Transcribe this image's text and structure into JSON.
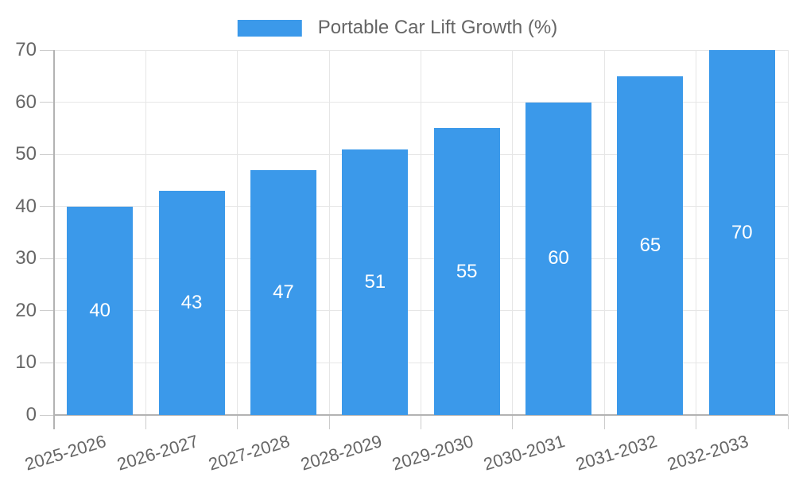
{
  "legend": {
    "label": "Portable Car Lift Growth (%)"
  },
  "colors": {
    "bar": "#3B99EA",
    "text": "#666666",
    "bar_value_text": "#ffffff",
    "gridline": "#e6e6e6",
    "tickmark": "#cccccc",
    "axis_line": "#b3b3b3",
    "background": "#ffffff"
  },
  "chart_data": {
    "type": "bar",
    "title": "Portable Car Lift Growth (%)",
    "series_name": "Portable Car Lift Growth (%)",
    "categories": [
      "2025-2026",
      "2026-2027",
      "2027-2028",
      "2028-2029",
      "2029-2030",
      "2030-2031",
      "2031-2032",
      "2032-2033"
    ],
    "values": [
      40,
      43,
      47,
      51,
      55,
      60,
      65,
      70
    ],
    "value_labels": [
      "40",
      "43",
      "47",
      "51",
      "55",
      "60",
      "65",
      "70"
    ],
    "xlabel": "",
    "ylabel": "",
    "ylim": [
      0,
      70
    ],
    "y_ticks": [
      0,
      10,
      20,
      30,
      40,
      50,
      60,
      70
    ],
    "grid": true,
    "legend_position": "top-center",
    "value_labels_position": "inside-center",
    "x_tick_rotation_deg": -17
  }
}
